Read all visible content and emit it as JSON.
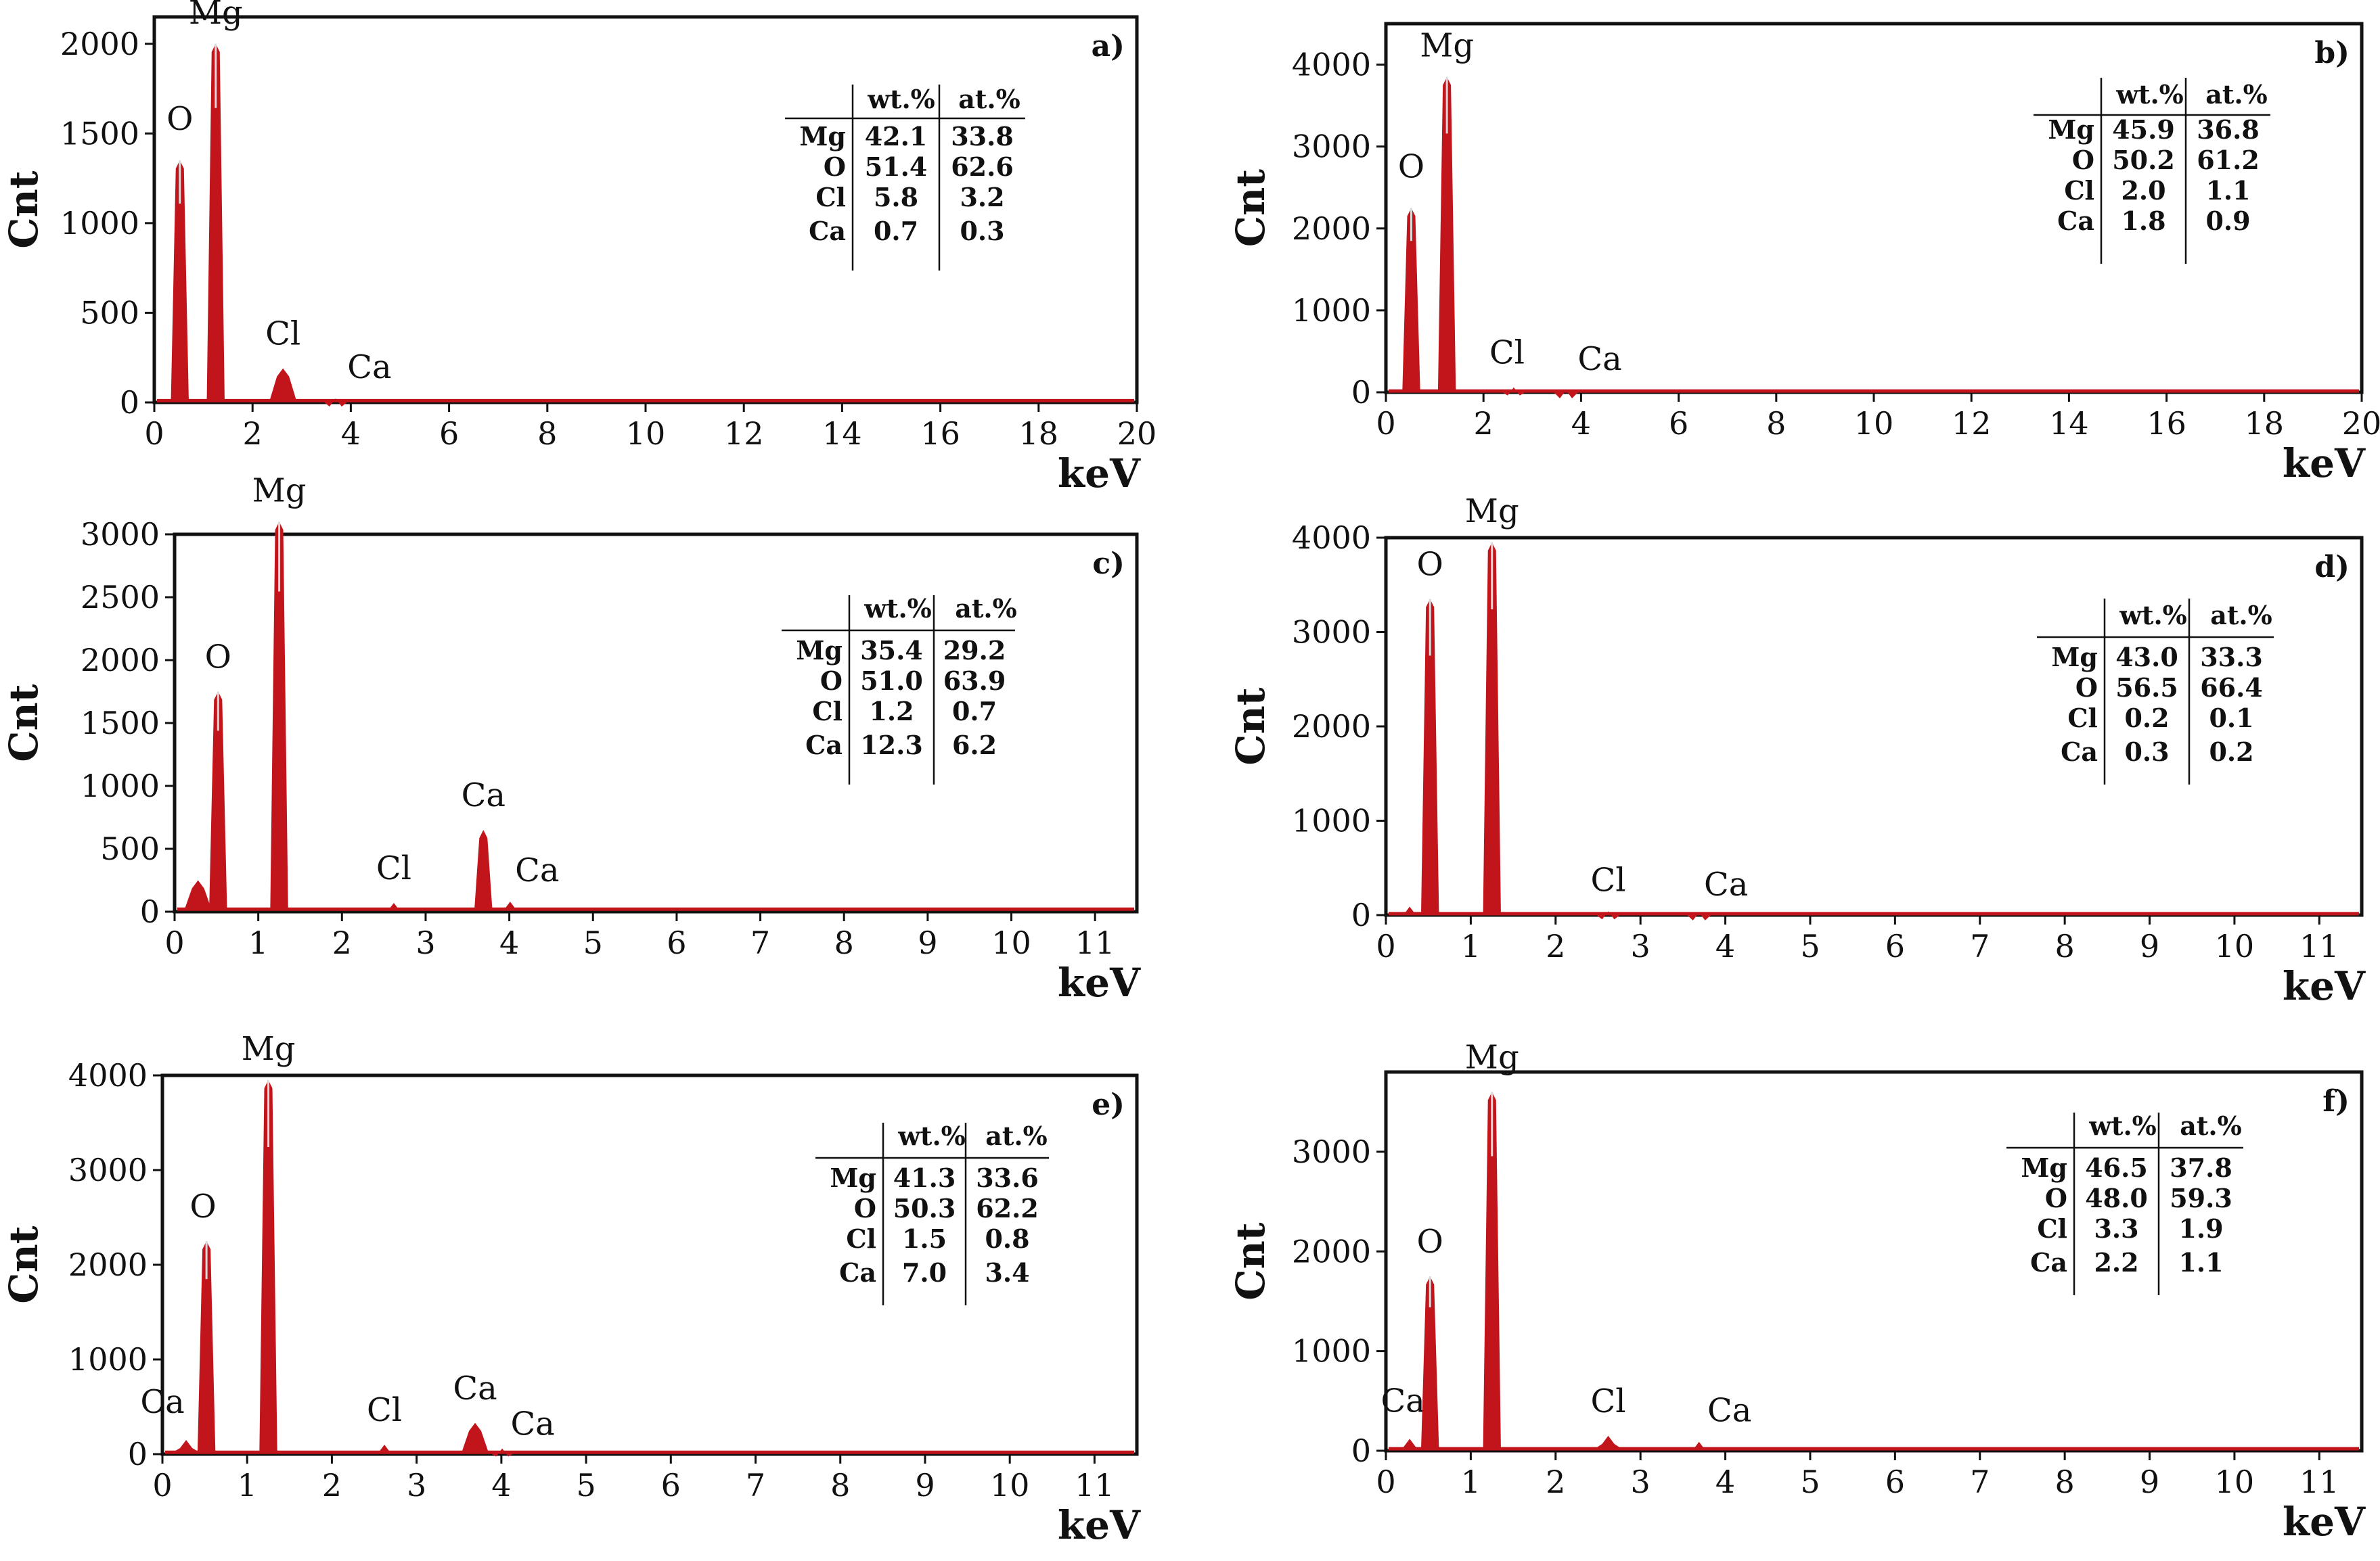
{
  "colors": {
    "peak": "#c2151b",
    "peak_highlight": "#d9d9d9",
    "axis": "#111111",
    "background": "#ffffff"
  },
  "chart_data": [
    {
      "type": "line",
      "panel": "a)",
      "ylabel": "Cnt",
      "xlabel": "keV",
      "xlim": [
        0,
        20
      ],
      "ylim": [
        0,
        2150
      ],
      "x_ticks": [
        0,
        2,
        4,
        6,
        8,
        10,
        12,
        14,
        16,
        18,
        20
      ],
      "y_ticks": [
        0,
        500,
        1000,
        1500,
        2000
      ],
      "baseline": 10,
      "peaks": [
        {
          "x": 0.52,
          "y": 1350,
          "label": "O"
        },
        {
          "x": 1.25,
          "y": 2000,
          "label": "Mg"
        },
        {
          "x": 2.62,
          "y": 190,
          "label": "Cl"
        },
        {
          "x": 3.69,
          "y": 22,
          "label": "Ca"
        }
      ],
      "table": {
        "columns": [
          "wt.%",
          "at.%"
        ],
        "rows": [
          {
            "element": "Mg",
            "wt": "42.1",
            "at": "33.8"
          },
          {
            "element": "O",
            "wt": "51.4",
            "at": "62.6"
          },
          {
            "element": "Cl",
            "wt": "5.8",
            "at": "3.2"
          },
          {
            "element": "Ca",
            "wt": "0.7",
            "at": "0.3"
          }
        ]
      }
    },
    {
      "type": "line",
      "panel": "b)",
      "ylabel": "Cnt",
      "xlabel": "keV",
      "xlim": [
        0,
        20
      ],
      "ylim": [
        0,
        4500
      ],
      "x_ticks": [
        0,
        2,
        4,
        6,
        8,
        10,
        12,
        14,
        16,
        18,
        20
      ],
      "y_ticks": [
        0,
        1000,
        2000,
        3000,
        4000
      ],
      "baseline": 15,
      "peaks": [
        {
          "x": 0.52,
          "y": 2250,
          "label": "O"
        },
        {
          "x": 1.25,
          "y": 3850,
          "label": "Mg"
        },
        {
          "x": 2.62,
          "y": 60,
          "label": "Cl"
        },
        {
          "x": 3.69,
          "y": 25,
          "label": "Ca"
        }
      ],
      "table": {
        "columns": [
          "wt.%",
          "at.%"
        ],
        "rows": [
          {
            "element": "Mg",
            "wt": "45.9",
            "at": "36.8"
          },
          {
            "element": "O",
            "wt": "50.2",
            "at": "61.2"
          },
          {
            "element": "Cl",
            "wt": "2.0",
            "at": "1.1"
          },
          {
            "element": "Ca",
            "wt": "1.8",
            "at": "0.9"
          }
        ]
      }
    },
    {
      "type": "line",
      "panel": "c)",
      "ylabel": "Cnt",
      "xlabel": "keV",
      "xlim": [
        0,
        11.5
      ],
      "ylim": [
        0,
        3000
      ],
      "x_ticks": [
        0,
        1,
        2,
        3,
        4,
        5,
        6,
        7,
        8,
        9,
        10,
        11
      ],
      "y_ticks": [
        0,
        500,
        1000,
        1500,
        2000,
        2500,
        3000
      ],
      "baseline": 20,
      "peaks": [
        {
          "x": 0.28,
          "y": 250,
          "label": ""
        },
        {
          "x": 0.52,
          "y": 1750,
          "label": "O"
        },
        {
          "x": 1.25,
          "y": 3100,
          "label": "Mg"
        },
        {
          "x": 2.62,
          "y": 70,
          "label": "Cl"
        },
        {
          "x": 3.69,
          "y": 650,
          "label": "Ca"
        },
        {
          "x": 4.01,
          "y": 80,
          "label": "Ca"
        }
      ],
      "table": {
        "columns": [
          "wt.%",
          "at.%"
        ],
        "rows": [
          {
            "element": "Mg",
            "wt": "35.4",
            "at": "29.2"
          },
          {
            "element": "O",
            "wt": "51.0",
            "at": "63.9"
          },
          {
            "element": "Cl",
            "wt": "1.2",
            "at": "0.7"
          },
          {
            "element": "Ca",
            "wt": "12.3",
            "at": "6.2"
          }
        ]
      }
    },
    {
      "type": "line",
      "panel": "d)",
      "ylabel": "Cnt",
      "xlabel": "keV",
      "xlim": [
        0,
        11.5
      ],
      "ylim": [
        0,
        4000
      ],
      "x_ticks": [
        0,
        1,
        2,
        3,
        4,
        5,
        6,
        7,
        8,
        9,
        10,
        11
      ],
      "y_ticks": [
        0,
        1000,
        2000,
        3000,
        4000
      ],
      "baseline": 15,
      "peaks": [
        {
          "x": 0.28,
          "y": 90,
          "label": ""
        },
        {
          "x": 0.52,
          "y": 3350,
          "label": "O"
        },
        {
          "x": 1.25,
          "y": 3950,
          "label": "Mg"
        },
        {
          "x": 2.62,
          "y": 40,
          "label": "Cl"
        },
        {
          "x": 3.69,
          "y": 30,
          "label": "Ca"
        }
      ],
      "table": {
        "columns": [
          "wt.%",
          "at.%"
        ],
        "rows": [
          {
            "element": "Mg",
            "wt": "43.0",
            "at": "33.3"
          },
          {
            "element": "O",
            "wt": "56.5",
            "at": "66.4"
          },
          {
            "element": "Cl",
            "wt": "0.2",
            "at": "0.1"
          },
          {
            "element": "Ca",
            "wt": "0.3",
            "at": "0.2"
          }
        ]
      }
    },
    {
      "type": "line",
      "panel": "e)",
      "ylabel": "Cnt",
      "xlabel": "keV",
      "xlim": [
        0,
        11.5
      ],
      "ylim": [
        0,
        4000
      ],
      "x_ticks": [
        0,
        1,
        2,
        3,
        4,
        5,
        6,
        7,
        8,
        9,
        10,
        11
      ],
      "y_ticks": [
        0,
        1000,
        2000,
        3000,
        4000
      ],
      "baseline": 20,
      "peaks": [
        {
          "x": 0.28,
          "y": 150,
          "label": "Ca"
        },
        {
          "x": 0.52,
          "y": 2250,
          "label": "O"
        },
        {
          "x": 1.25,
          "y": 3950,
          "label": "Mg"
        },
        {
          "x": 2.62,
          "y": 100,
          "label": "Cl"
        },
        {
          "x": 3.69,
          "y": 330,
          "label": "Ca"
        },
        {
          "x": 4.01,
          "y": 60,
          "label": "Ca"
        }
      ],
      "table": {
        "columns": [
          "wt.%",
          "at.%"
        ],
        "rows": [
          {
            "element": "Mg",
            "wt": "41.3",
            "at": "33.6"
          },
          {
            "element": "O",
            "wt": "50.3",
            "at": "62.2"
          },
          {
            "element": "Cl",
            "wt": "1.5",
            "at": "0.8"
          },
          {
            "element": "Ca",
            "wt": "7.0",
            "at": "3.4"
          }
        ]
      }
    },
    {
      "type": "line",
      "panel": "f)",
      "ylabel": "Cnt",
      "xlabel": "keV",
      "xlim": [
        0,
        11.5
      ],
      "ylim": [
        0,
        3800
      ],
      "x_ticks": [
        0,
        1,
        2,
        3,
        4,
        5,
        6,
        7,
        8,
        9,
        10,
        11
      ],
      "y_ticks": [
        0,
        1000,
        2000,
        3000
      ],
      "baseline": 20,
      "peaks": [
        {
          "x": 0.28,
          "y": 120,
          "label": "Ca"
        },
        {
          "x": 0.52,
          "y": 1750,
          "label": "O"
        },
        {
          "x": 1.25,
          "y": 3600,
          "label": "Mg"
        },
        {
          "x": 2.62,
          "y": 150,
          "label": "Cl"
        },
        {
          "x": 3.69,
          "y": 90,
          "label": "Ca"
        }
      ],
      "table": {
        "columns": [
          "wt.%",
          "at.%"
        ],
        "rows": [
          {
            "element": "Mg",
            "wt": "46.5",
            "at": "37.8"
          },
          {
            "element": "O",
            "wt": "48.0",
            "at": "59.3"
          },
          {
            "element": "Cl",
            "wt": "3.3",
            "at": "1.9"
          },
          {
            "element": "Ca",
            "wt": "2.2",
            "at": "1.1"
          }
        ]
      }
    }
  ]
}
